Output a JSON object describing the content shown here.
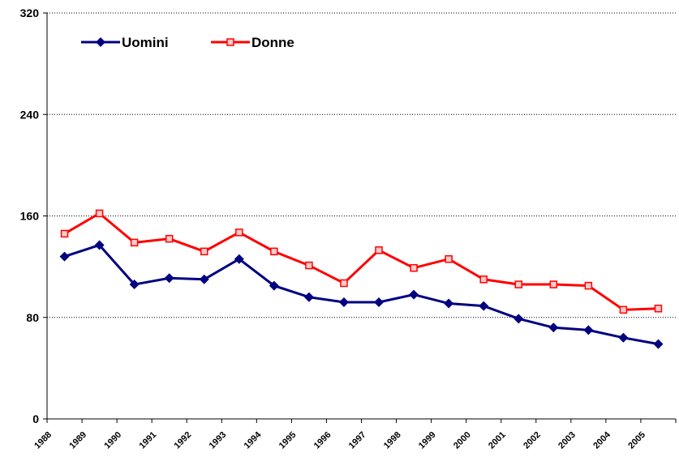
{
  "chart_data": {
    "type": "line",
    "categories": [
      "1988",
      "1989",
      "1990",
      "1991",
      "1992",
      "1993",
      "1994",
      "1995",
      "1996",
      "1997",
      "1998",
      "1999",
      "2000",
      "2001",
      "2002",
      "2003",
      "2004",
      "2005"
    ],
    "series": [
      {
        "name": "Uomini",
        "color": "#000080",
        "marker": "diamond",
        "values": [
          128,
          137,
          106,
          111,
          110,
          126,
          105,
          96,
          92,
          92,
          98,
          91,
          89,
          79,
          72,
          70,
          64,
          59
        ]
      },
      {
        "name": "Donne",
        "color": "#ff0000",
        "marker": "square",
        "values": [
          146,
          162,
          139,
          142,
          132,
          147,
          132,
          121,
          107,
          133,
          119,
          126,
          110,
          106,
          106,
          105,
          86,
          87
        ]
      }
    ],
    "ylim": [
      0,
      320
    ],
    "yticks": [
      0,
      80,
      160,
      240,
      320
    ],
    "grid": true,
    "legend": "top-left"
  }
}
